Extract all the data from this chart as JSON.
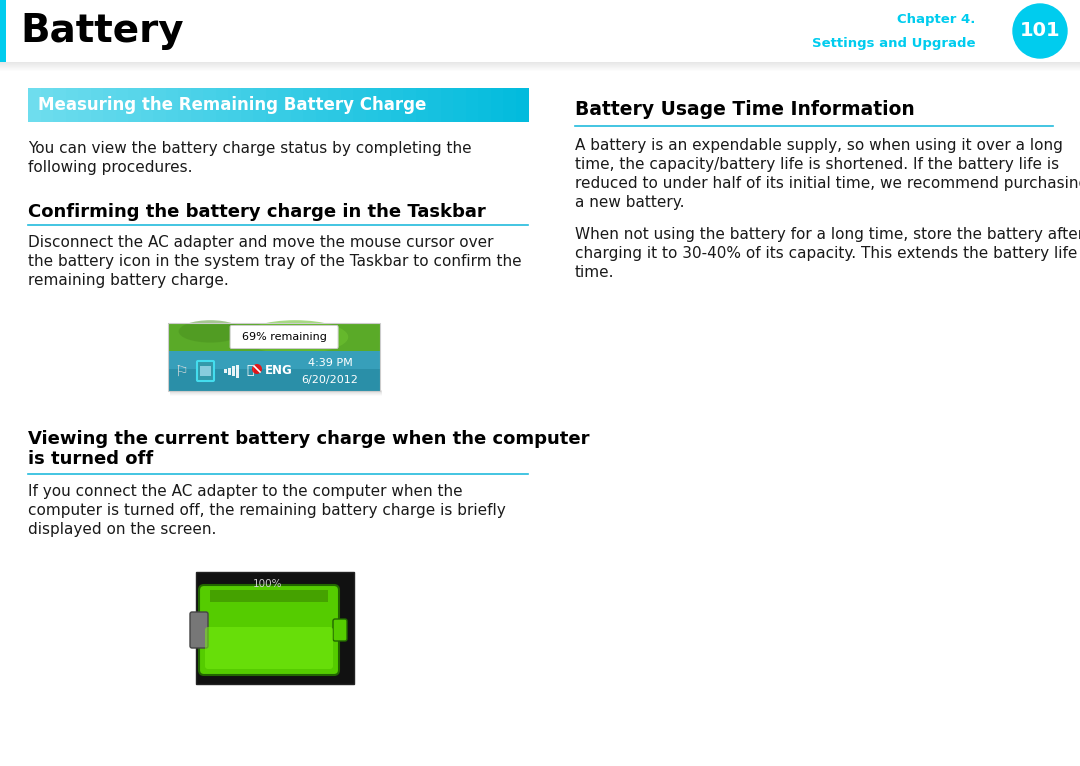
{
  "page_title": "Battery",
  "chapter_line1": "Chapter 4.",
  "chapter_line2": "Settings and Upgrade",
  "page_number": "101",
  "cyan_color": "#00CCEE",
  "cyan_dark": "#00AACC",
  "page_bg": "#FFFFFF",
  "section1_title": "Measuring the Remaining Battery Charge",
  "section1_bg_top": "#6EDDEE",
  "section1_bg_bot": "#22BBDD",
  "body1_line1": "You can view the battery charge status by completing the",
  "body1_line2": "following procedures.",
  "subsection1_title": "Confirming the battery charge in the Taskbar",
  "sub1_body_line1": "Disconnect the AC adapter and move the mouse cursor over",
  "sub1_body_line2": "the battery icon in the system tray of the Taskbar to confirm the",
  "sub1_body_line3": "remaining battery charge.",
  "subsection2_title_line1": "Viewing the current battery charge when the computer",
  "subsection2_title_line2": "is turned off",
  "sub2_body_line1": "If you connect the AC adapter to the computer when the",
  "sub2_body_line2": "computer is turned off, the remaining battery charge is briefly",
  "sub2_body_line3": "displayed on the screen.",
  "right_title": "Battery Usage Time Information",
  "right_body1_line1": "A battery is an expendable supply, so when using it over a long",
  "right_body1_line2": "time, the capacity/battery life is shortened. If the battery life is",
  "right_body1_line3": "reduced to under half of its initial time, we recommend purchasing",
  "right_body1_line4": "a new battery.",
  "right_body2_line1": "When not using the battery for a long time, store the battery after",
  "right_body2_line2": "charging it to 30-40% of its capacity. This extends the battery life",
  "right_body2_line3": "time.",
  "text_color": "#1a1a1a",
  "divider_color": "#22BBDD",
  "shadow_color": "#BBBBBB"
}
